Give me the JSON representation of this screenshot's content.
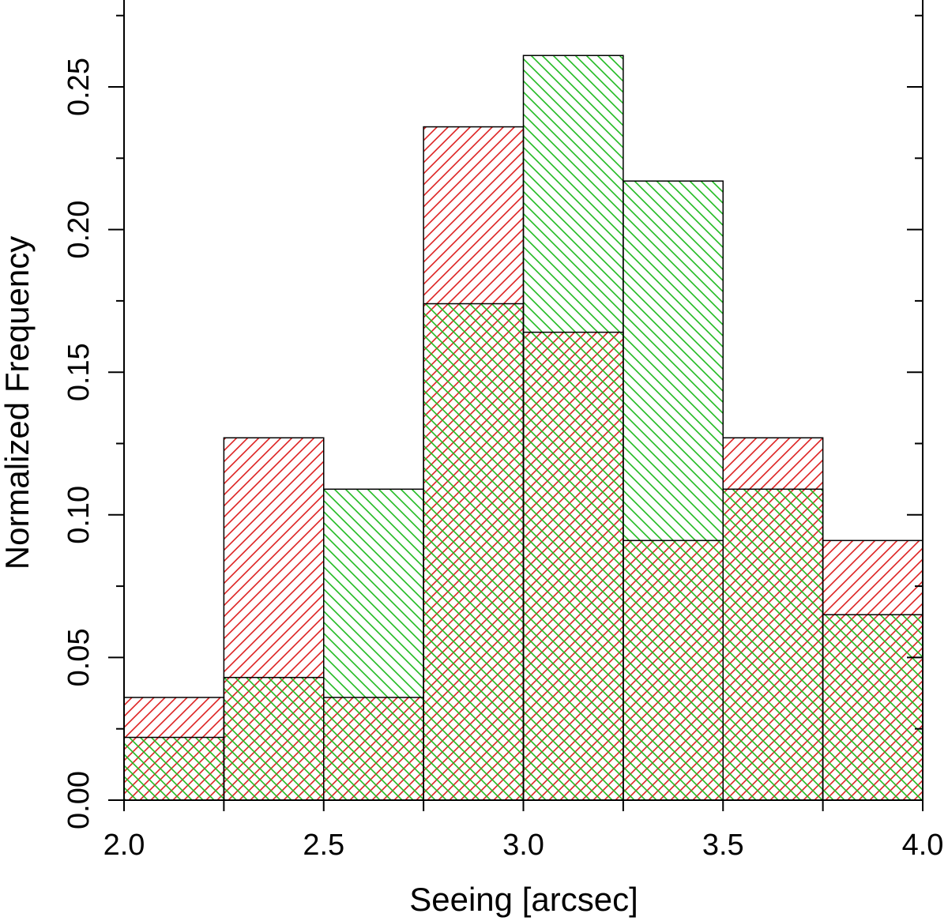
{
  "chart_data": {
    "type": "bar",
    "subtype": "overlapping-histogram",
    "title": "",
    "xlabel": "Seeing [arcsec]",
    "ylabel": "Normalized Frequency",
    "bin_edges": [
      2.0,
      2.25,
      2.5,
      2.75,
      3.0,
      3.25,
      3.5,
      3.75,
      4.0
    ],
    "xlim": [
      2.0,
      4.0
    ],
    "ylim": [
      0.0,
      0.28
    ],
    "x_ticks": [
      2.0,
      2.5,
      3.0,
      3.5,
      4.0
    ],
    "x_tick_labels": [
      "2.0",
      "2.5",
      "3.0",
      "3.5",
      "4.0"
    ],
    "y_ticks": [
      0.0,
      0.05,
      0.1,
      0.15,
      0.2,
      0.25
    ],
    "y_tick_labels": [
      "0.00",
      "0.05",
      "0.10",
      "0.15",
      "0.20",
      "0.25"
    ],
    "series": [
      {
        "name": "red",
        "color": "#dd2222",
        "hatch": "forward-diagonal",
        "values": [
          0.036,
          0.127,
          0.036,
          0.236,
          0.164,
          0.091,
          0.127,
          0.091
        ]
      },
      {
        "name": "green",
        "color": "#22bb22",
        "hatch": "backward-diagonal",
        "values": [
          0.022,
          0.043,
          0.109,
          0.174,
          0.261,
          0.217,
          0.109,
          0.065
        ]
      }
    ]
  }
}
